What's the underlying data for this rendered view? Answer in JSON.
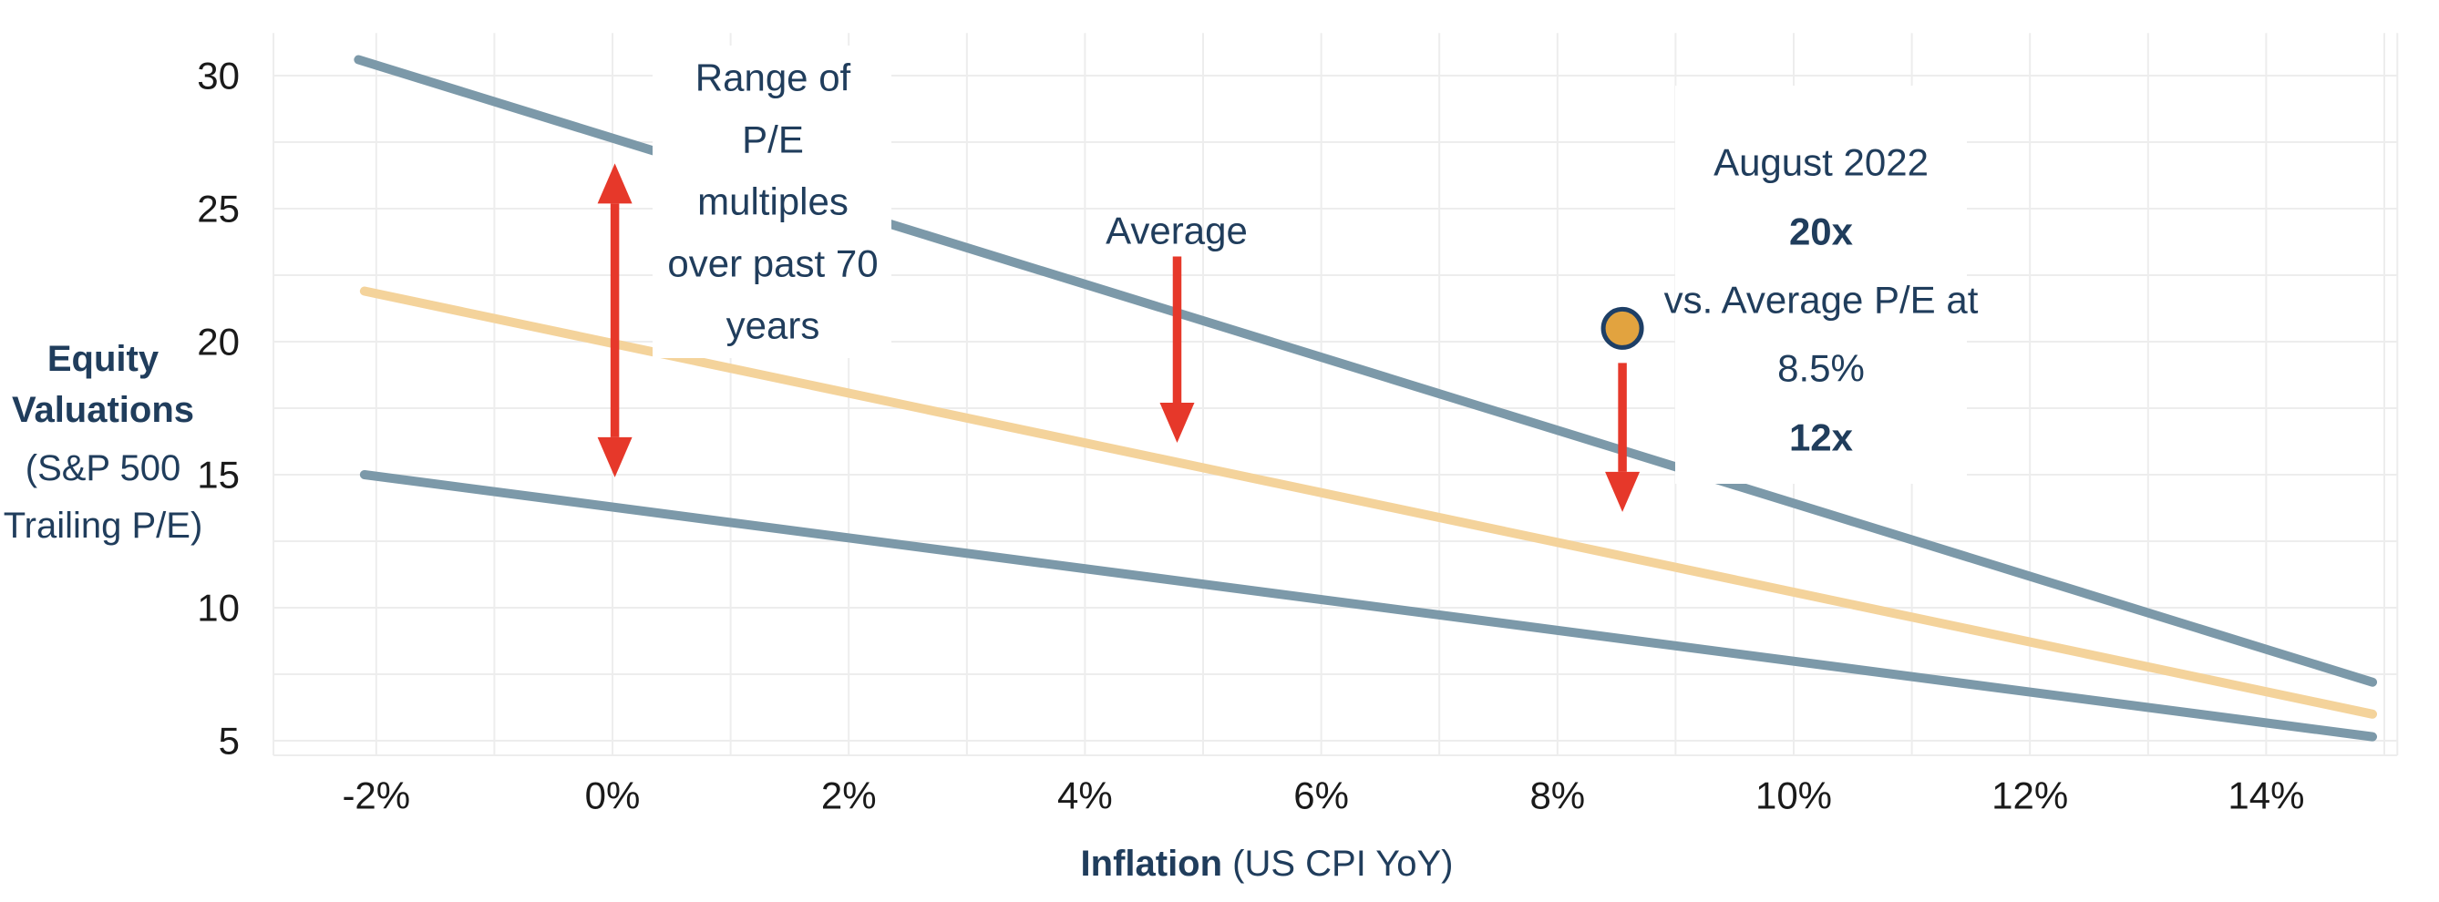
{
  "chart_data": {
    "type": "line",
    "title": "",
    "x_axis": {
      "title_bold": "Inflation",
      "title_regular": " (US CPI YoY)",
      "tick_labels": [
        "-2%",
        "0%",
        "2%",
        "4%",
        "6%",
        "8%",
        "10%",
        "12%",
        "14%"
      ],
      "tick_values": [
        -2,
        0,
        2,
        4,
        6,
        8,
        10,
        12,
        14
      ],
      "range": [
        -2.87,
        15.11
      ],
      "gridline_step": 1,
      "grid": true
    },
    "y_axis": {
      "title_lines": [
        "Equity",
        "Valuations",
        "(S&P 500",
        "Trailing P/E)"
      ],
      "title_bold_flags": [
        true,
        true,
        false,
        false
      ],
      "tick_labels": [
        "5",
        "10",
        "15",
        "20",
        "25",
        "30"
      ],
      "tick_values": [
        5,
        10,
        15,
        20,
        25,
        30
      ],
      "range": [
        4.45,
        31.6
      ],
      "gridline_step": 2.5,
      "grid": true
    },
    "series": [
      {
        "name": "pe-range-upper",
        "color": "#7C99A9",
        "width": 10,
        "points": [
          [
            -2.15,
            30.6
          ],
          [
            14.9,
            7.2
          ]
        ]
      },
      {
        "name": "pe-average",
        "color": "#F4D39B",
        "width": 10,
        "points": [
          [
            -2.1,
            21.9
          ],
          [
            14.9,
            6.0
          ]
        ]
      },
      {
        "name": "pe-range-lower",
        "color": "#7C99A9",
        "width": 10,
        "points": [
          [
            -2.1,
            15.0
          ],
          [
            14.9,
            5.15
          ]
        ]
      }
    ],
    "marker": {
      "name": "august-2022-point",
      "x": 8.55,
      "y": 20.5,
      "fill": "#E2A33F",
      "stroke": "#1E3F66",
      "radius": 21
    },
    "annotations": {
      "arrow_color": "#E6382A",
      "arrows": [
        {
          "name": "pe-range-span-arrow",
          "x": 0.02,
          "from_value": 26.7,
          "to_value": 14.9,
          "double": true
        },
        {
          "name": "average-pointer-arrow",
          "x": 4.78,
          "from_value": 23.2,
          "to_value": 16.2,
          "double": false
        },
        {
          "name": "august-drop-arrow",
          "x": 8.55,
          "from_value": 19.2,
          "to_value": 13.6,
          "double": false
        }
      ],
      "range_label": {
        "lines": [
          "Range of",
          "P/E",
          "multiples",
          "over past 70",
          "years"
        ]
      },
      "average_label": {
        "text": "Average"
      },
      "august_label": {
        "lines": [
          "August 2022",
          "20x",
          "vs. Average P/E at",
          "8.5%",
          "12x"
        ],
        "bold_flags": [
          false,
          true,
          false,
          false,
          true
        ]
      }
    },
    "colors": {
      "line_gray_blue": "#7C99A9",
      "line_yellow": "#F4D39B",
      "annotation_red": "#E6382A",
      "text_navy": "#203D5C",
      "gridline": "#EDEDED",
      "tick_text": "#1A1A1A"
    }
  }
}
